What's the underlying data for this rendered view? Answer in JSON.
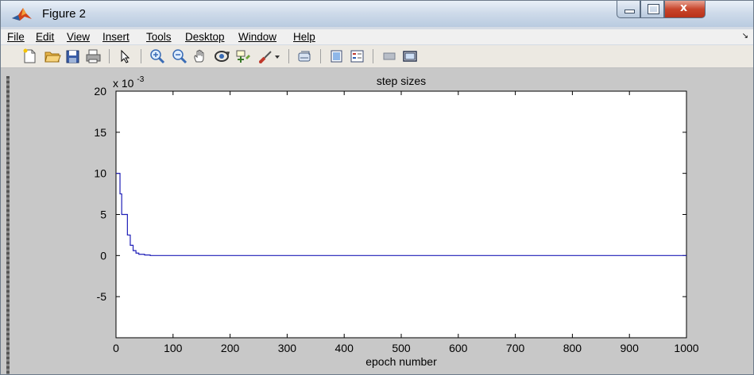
{
  "window": {
    "title": "Figure 2",
    "close_glyph": "x"
  },
  "menu": [
    "File",
    "Edit",
    "View",
    "Insert",
    "Tools",
    "Desktop",
    "Window",
    "Help"
  ],
  "menu_arrow": "↘",
  "toolbar_icons": [
    "new-figure-icon",
    "open-file-icon",
    "save-icon",
    "print-icon",
    "pointer-icon",
    "zoom-in-icon",
    "zoom-out-icon",
    "pan-icon",
    "rotate-3d-icon",
    "data-cursor-icon",
    "brush-icon",
    "dropdown-arrow-icon",
    "link-plot-icon",
    "colorbar-icon",
    "legend-icon",
    "hide-plot-tools-icon",
    "show-plot-tools-icon"
  ],
  "colors": {
    "series": "#1f1fb8",
    "figure_bg": "#c8c8c8",
    "axes_bg": "#ffffff"
  },
  "chart_data": {
    "type": "line",
    "title": "step sizes",
    "xlabel": "epoch number",
    "ylabel": "",
    "y_exponent_label": "x 10",
    "y_exponent": "-3",
    "xlim": [
      0,
      1000
    ],
    "ylim": [
      -10,
      20
    ],
    "xticks": [
      0,
      100,
      200,
      300,
      400,
      500,
      600,
      700,
      800,
      900,
      1000
    ],
    "yticks": [
      -5,
      0,
      5,
      10,
      15,
      20
    ],
    "grid": false,
    "series": [
      {
        "x": [
          0,
          7,
          7,
          10,
          10,
          20,
          20,
          25,
          25,
          30,
          30,
          35,
          35,
          40,
          40,
          50,
          50,
          60,
          60,
          1000
        ],
        "y": [
          10,
          10,
          7.5,
          7.5,
          5,
          5,
          2.5,
          2.5,
          1.25,
          1.25,
          0.6,
          0.6,
          0.3,
          0.3,
          0.15,
          0.15,
          0.07,
          0.07,
          0,
          0
        ]
      }
    ]
  }
}
